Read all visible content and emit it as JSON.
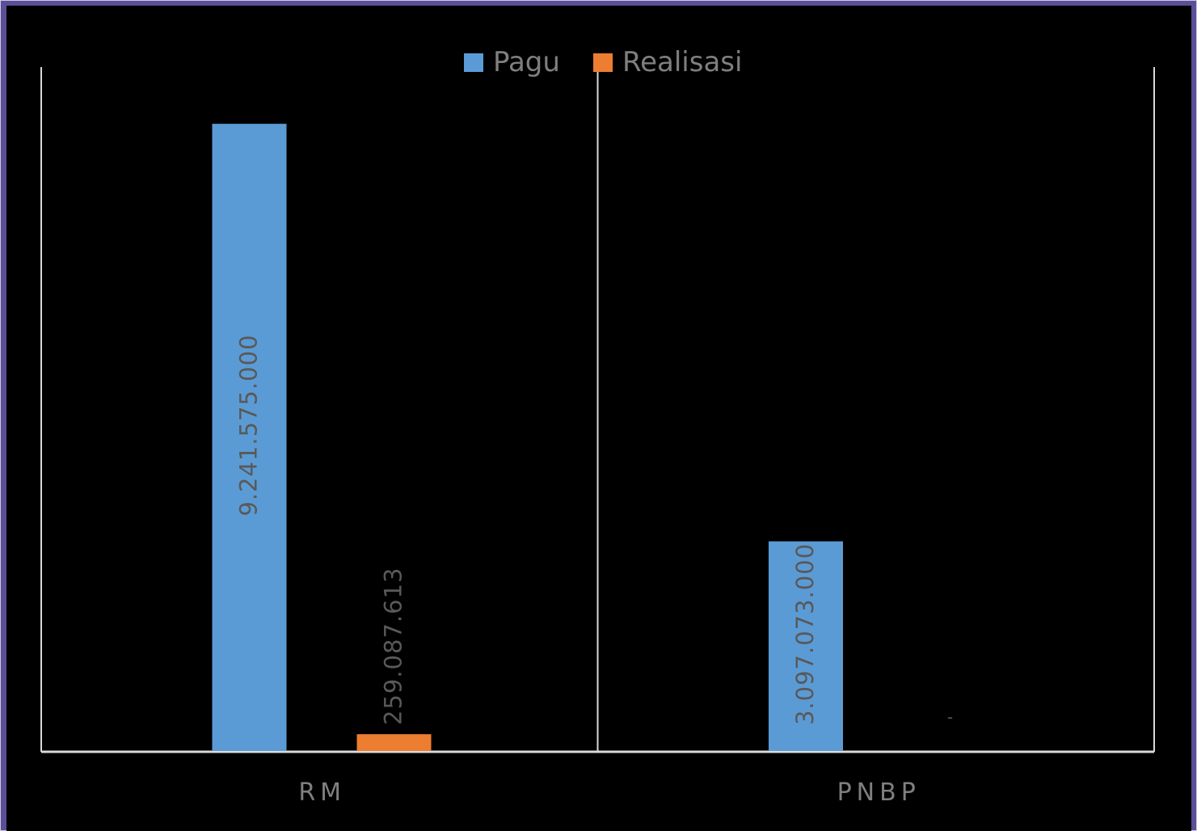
{
  "chart_data": {
    "type": "bar",
    "categories": [
      "RM",
      "PNBP"
    ],
    "series": [
      {
        "name": "Pagu",
        "color": "#5b9bd5",
        "values": [
          9241575000,
          3097073000
        ],
        "labels": [
          "9.241.575.000",
          "3.097.073.000"
        ]
      },
      {
        "name": "Realisasi",
        "color": "#ed7d31",
        "values": [
          259087613,
          0
        ],
        "labels": [
          "259.087.613",
          "-"
        ]
      }
    ],
    "ylim": [
      0,
      10100000000
    ],
    "grid": false,
    "legend": "top-center",
    "colors": {
      "background": "#000000",
      "frame": "#5b4f96",
      "axis": "#d9d9d9",
      "label": "#595959",
      "category_label": "#7f7f7f"
    }
  }
}
